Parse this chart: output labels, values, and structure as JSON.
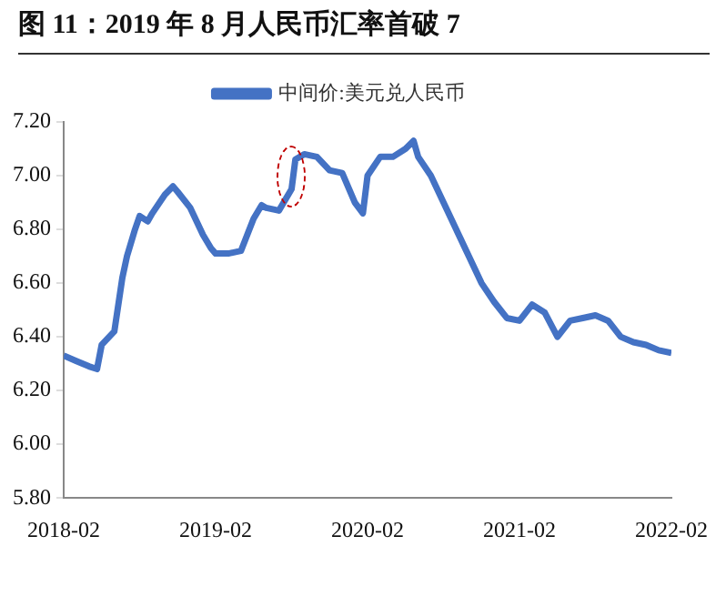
{
  "chart_data": {
    "type": "line",
    "title": "图 11：2019 年 8 月人民币汇率首破 7",
    "x": [
      "2018-02",
      "2018-03",
      "2018-04",
      "2018-04-20",
      "2018-05",
      "2018-06",
      "2018-06-20",
      "2018-07",
      "2018-07-20",
      "2018-08",
      "2018-08-20",
      "2018-09",
      "2018-10",
      "2018-10-20",
      "2018-11",
      "2018-12",
      "2019-01",
      "2019-01-20",
      "2019-02",
      "2019-03",
      "2019-04",
      "2019-05",
      "2019-05-20",
      "2019-06",
      "2019-07",
      "2019-08",
      "2019-08-10",
      "2019-09",
      "2019-10",
      "2019-11",
      "2019-12",
      "2020-01",
      "2020-01-20",
      "2020-02",
      "2020-03",
      "2020-04",
      "2020-05",
      "2020-05-20",
      "2020-06",
      "2020-07",
      "2020-08",
      "2020-09",
      "2020-10",
      "2020-11",
      "2020-12",
      "2021-01",
      "2021-02",
      "2021-03",
      "2021-04",
      "2021-05",
      "2021-06",
      "2021-07",
      "2021-08",
      "2021-09",
      "2021-10",
      "2021-11",
      "2021-12",
      "2022-01",
      "2022-02"
    ],
    "series": [
      {
        "name": "中间价:美元兑人民币",
        "color": "#4472c4",
        "values": [
          6.33,
          6.31,
          6.29,
          6.28,
          6.37,
          6.42,
          6.62,
          6.7,
          6.8,
          6.85,
          6.83,
          6.86,
          6.93,
          6.96,
          6.94,
          6.88,
          6.78,
          6.73,
          6.71,
          6.71,
          6.72,
          6.84,
          6.89,
          6.88,
          6.87,
          6.95,
          7.06,
          7.08,
          7.07,
          7.02,
          7.01,
          6.9,
          6.86,
          7.0,
          7.07,
          7.07,
          7.1,
          7.13,
          7.07,
          7.0,
          6.9,
          6.8,
          6.7,
          6.6,
          6.53,
          6.47,
          6.46,
          6.52,
          6.49,
          6.4,
          6.46,
          6.47,
          6.48,
          6.46,
          6.4,
          6.38,
          6.37,
          6.35,
          6.34
        ]
      }
    ],
    "xlim": [
      "2018-02",
      "2022-02"
    ],
    "xticks": [
      "2018-02",
      "2019-02",
      "2020-02",
      "2021-02",
      "2022-02"
    ],
    "ylim": [
      5.8,
      7.2
    ],
    "yticks": [
      {
        "value": 5.8,
        "label": "5.80"
      },
      {
        "value": 6,
        "label": "6.00"
      },
      {
        "value": 6.2,
        "label": "6.20"
      },
      {
        "value": 6.4,
        "label": "6.40"
      },
      {
        "value": 6.6,
        "label": "6.60"
      },
      {
        "value": 6.8,
        "label": "6.80"
      },
      {
        "value": 7,
        "label": "7.00"
      },
      {
        "value": 7.2,
        "label": "7.20"
      }
    ],
    "grid": false,
    "legend": "top",
    "marker": "none",
    "line_style": "solid"
  }
}
